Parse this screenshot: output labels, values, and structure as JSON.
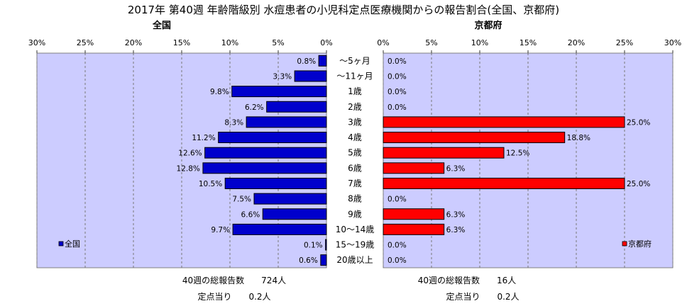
{
  "title": "2017年 第40週 年齢階級別 水痘患者の小児科定点医療機関からの報告割合(全国、京都府)",
  "chart_data": [
    {
      "type": "bar",
      "orientation": "horizontal",
      "direction": "right-to-left",
      "title": "全国",
      "categories": [
        "～5ヶ月",
        "～11ヶ月",
        "1歳",
        "2歳",
        "3歳",
        "4歳",
        "5歳",
        "6歳",
        "7歳",
        "8歳",
        "9歳",
        "10～14歳",
        "15～19歳",
        "20歳以上"
      ],
      "series": [
        {
          "name": "全国",
          "color": "#0000cc",
          "values": [
            0.8,
            3.3,
            9.8,
            6.2,
            8.3,
            11.2,
            12.6,
            12.8,
            10.5,
            7.5,
            6.6,
            9.7,
            0.1,
            0.6
          ],
          "labels": [
            "0.8%",
            "3.3%",
            "9.8%",
            "6.2%",
            "8.3%",
            "11.2%",
            "12.6%",
            "12.8%",
            "10.5%",
            "7.5%",
            "6.6%",
            "9.7%",
            "0.1%",
            "0.6%"
          ]
        }
      ],
      "xlim": [
        0,
        30
      ],
      "xticks": [
        "30%",
        "25%",
        "20%",
        "15%",
        "10%",
        "5%",
        "0%"
      ],
      "legend": "bottom-left",
      "plot_background": "#ccccff",
      "grid": true
    },
    {
      "type": "bar",
      "orientation": "horizontal",
      "direction": "left-to-right",
      "title": "京都府",
      "categories": [
        "～5ヶ月",
        "～11ヶ月",
        "1歳",
        "2歳",
        "3歳",
        "4歳",
        "5歳",
        "6歳",
        "7歳",
        "8歳",
        "9歳",
        "10～14歳",
        "15～19歳",
        "20歳以上"
      ],
      "series": [
        {
          "name": "京都府",
          "color": "#ff0000",
          "values": [
            0.0,
            0.0,
            0.0,
            0.0,
            25.0,
            18.8,
            12.5,
            6.3,
            25.0,
            0.0,
            6.3,
            6.3,
            0.0,
            0.0
          ],
          "labels": [
            "0.0%",
            "0.0%",
            "0.0%",
            "0.0%",
            "25.0%",
            "18.8%",
            "12.5%",
            "6.3%",
            "25.0%",
            "0.0%",
            "6.3%",
            "6.3%",
            "0.0%",
            "0.0%"
          ]
        }
      ],
      "xlim": [
        0,
        30
      ],
      "xticks": [
        "0%",
        "5%",
        "10%",
        "15%",
        "20%",
        "25%",
        "30%"
      ],
      "legend": "bottom-right",
      "plot_background": "#ccccff",
      "grid": true
    }
  ],
  "footer": {
    "left": {
      "count": "40週の総報告数　　724人",
      "per_site": "定点当り　　0.2人"
    },
    "right": {
      "count": "40週の総報告数　　16人",
      "per_site": "定点当り　　0.2人"
    }
  }
}
